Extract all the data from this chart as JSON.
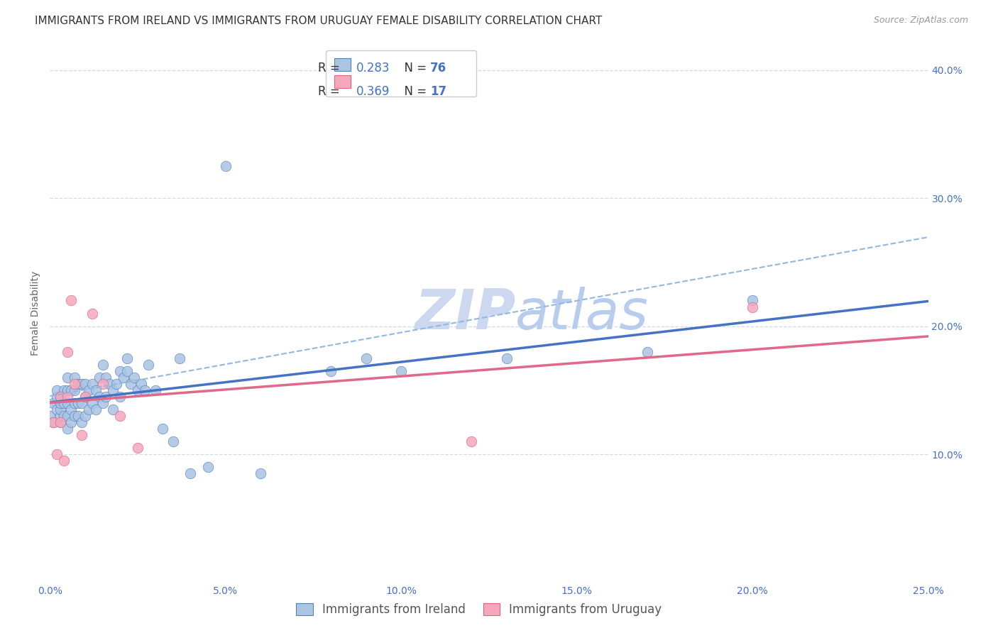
{
  "title": "IMMIGRANTS FROM IRELAND VS IMMIGRANTS FROM URUGUAY FEMALE DISABILITY CORRELATION CHART",
  "source_text": "Source: ZipAtlas.com",
  "ylabel": "Female Disability",
  "xlim": [
    0.0,
    0.25
  ],
  "ylim": [
    0.0,
    0.42
  ],
  "xticks": [
    0.0,
    0.05,
    0.1,
    0.15,
    0.2,
    0.25
  ],
  "yticks": [
    0.0,
    0.1,
    0.2,
    0.3,
    0.4
  ],
  "xticklabels": [
    "0.0%",
    "5.0%",
    "10.0%",
    "15.0%",
    "20.0%",
    "25.0%"
  ],
  "right_tick_labels": [
    "",
    "10.0%",
    "20.0%",
    "30.0%",
    "40.0%"
  ],
  "ireland_R": 0.283,
  "ireland_N": 76,
  "uruguay_R": 0.369,
  "uruguay_N": 17,
  "ireland_face_color": "#aac4e2",
  "uruguay_face_color": "#f5a8bc",
  "ireland_edge_color": "#5080c0",
  "uruguay_edge_color": "#e06080",
  "ireland_line_color": "#4472c4",
  "uruguay_line_color": "#e06888",
  "dashed_line_color": "#90b8e0",
  "ireland_scatter_x": [
    0.0,
    0.001,
    0.001,
    0.002,
    0.002,
    0.002,
    0.003,
    0.003,
    0.003,
    0.003,
    0.003,
    0.004,
    0.004,
    0.004,
    0.005,
    0.005,
    0.005,
    0.005,
    0.005,
    0.006,
    0.006,
    0.006,
    0.007,
    0.007,
    0.007,
    0.007,
    0.008,
    0.008,
    0.008,
    0.009,
    0.009,
    0.009,
    0.01,
    0.01,
    0.01,
    0.011,
    0.011,
    0.012,
    0.012,
    0.013,
    0.013,
    0.014,
    0.014,
    0.015,
    0.015,
    0.016,
    0.016,
    0.017,
    0.018,
    0.018,
    0.019,
    0.02,
    0.02,
    0.021,
    0.022,
    0.022,
    0.023,
    0.024,
    0.025,
    0.026,
    0.027,
    0.028,
    0.03,
    0.032,
    0.035,
    0.037,
    0.04,
    0.045,
    0.05,
    0.06,
    0.08,
    0.09,
    0.1,
    0.13,
    0.17,
    0.2
  ],
  "ireland_scatter_y": [
    0.13,
    0.125,
    0.14,
    0.135,
    0.145,
    0.15,
    0.125,
    0.13,
    0.135,
    0.14,
    0.145,
    0.13,
    0.14,
    0.15,
    0.12,
    0.13,
    0.14,
    0.15,
    0.16,
    0.125,
    0.135,
    0.15,
    0.13,
    0.14,
    0.15,
    0.16,
    0.13,
    0.14,
    0.155,
    0.125,
    0.14,
    0.155,
    0.13,
    0.145,
    0.155,
    0.135,
    0.15,
    0.14,
    0.155,
    0.135,
    0.15,
    0.145,
    0.16,
    0.14,
    0.17,
    0.145,
    0.16,
    0.155,
    0.135,
    0.15,
    0.155,
    0.145,
    0.165,
    0.16,
    0.175,
    0.165,
    0.155,
    0.16,
    0.15,
    0.155,
    0.15,
    0.17,
    0.15,
    0.12,
    0.11,
    0.175,
    0.085,
    0.09,
    0.325,
    0.085,
    0.165,
    0.175,
    0.165,
    0.175,
    0.18,
    0.22
  ],
  "uruguay_scatter_x": [
    0.001,
    0.002,
    0.003,
    0.003,
    0.004,
    0.005,
    0.005,
    0.006,
    0.007,
    0.009,
    0.01,
    0.012,
    0.015,
    0.02,
    0.025,
    0.12,
    0.2
  ],
  "uruguay_scatter_y": [
    0.125,
    0.1,
    0.125,
    0.145,
    0.095,
    0.145,
    0.18,
    0.22,
    0.155,
    0.115,
    0.145,
    0.21,
    0.155,
    0.13,
    0.105,
    0.11,
    0.215
  ],
  "background_color": "#ffffff",
  "grid_color": "#d0d8e8",
  "title_fontsize": 11,
  "tick_fontsize": 10,
  "legend_fontsize": 12,
  "ylabel_fontsize": 10,
  "watermark_color": "#ccd8ef"
}
